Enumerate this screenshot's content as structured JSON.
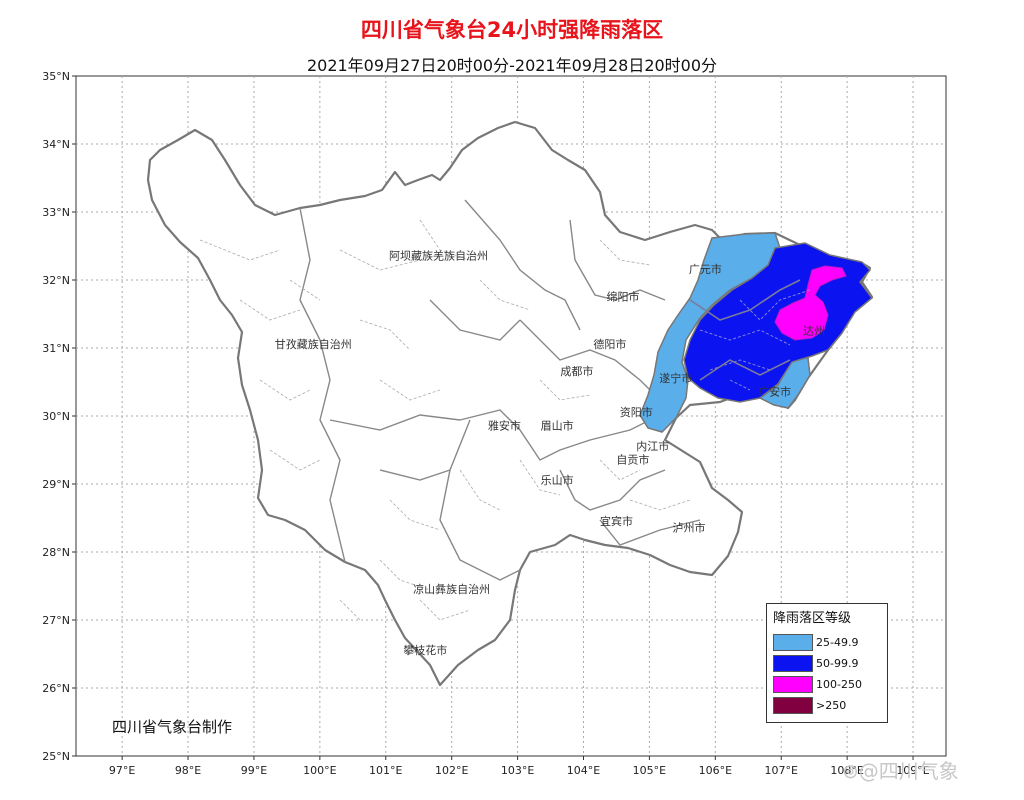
{
  "title": "四川省气象台24小时强降雨落区",
  "subtitle": "2021年09月27日20时00分-2021年09月28日20时00分",
  "axes": {
    "lat_ticks": [
      "35°N",
      "34°N",
      "33°N",
      "32°N",
      "31°N",
      "30°N",
      "29°N",
      "28°N",
      "27°N",
      "26°N",
      "25°N"
    ],
    "lon_ticks": [
      "97°E",
      "98°E",
      "99°E",
      "100°E",
      "101°E",
      "102°E",
      "103°E",
      "104°E",
      "105°E",
      "106°E",
      "107°E",
      "108°E",
      "109°E"
    ],
    "lat_range": [
      25,
      35
    ],
    "lon_range": [
      96.3,
      109.5
    ]
  },
  "cities": [
    {
      "name": "阿坝藏族羌族自治州",
      "lon": 101.8,
      "lat": 32.3
    },
    {
      "name": "甘孜藏族自治州",
      "lon": 99.9,
      "lat": 31.0
    },
    {
      "name": "凉山彝族自治州",
      "lon": 102.0,
      "lat": 27.4
    },
    {
      "name": "广元市",
      "lon": 105.85,
      "lat": 32.1
    },
    {
      "name": "绵阳市",
      "lon": 104.6,
      "lat": 31.7
    },
    {
      "name": "德阳市",
      "lon": 104.4,
      "lat": 31.0
    },
    {
      "name": "成都市",
      "lon": 103.9,
      "lat": 30.6
    },
    {
      "name": "遂宁市",
      "lon": 105.4,
      "lat": 30.5
    },
    {
      "name": "资阳市",
      "lon": 104.8,
      "lat": 30.0
    },
    {
      "name": "雅安市",
      "lon": 102.8,
      "lat": 29.8
    },
    {
      "name": "眉山市",
      "lon": 103.6,
      "lat": 29.8
    },
    {
      "name": "内江市",
      "lon": 105.05,
      "lat": 29.5
    },
    {
      "name": "自贡市",
      "lon": 104.75,
      "lat": 29.3
    },
    {
      "name": "乐山市",
      "lon": 103.6,
      "lat": 29.0
    },
    {
      "name": "宜宾市",
      "lon": 104.5,
      "lat": 28.4
    },
    {
      "name": "泸州市",
      "lon": 105.6,
      "lat": 28.3
    },
    {
      "name": "攀枝花市",
      "lon": 101.6,
      "lat": 26.5
    },
    {
      "name": "达州",
      "lon": 107.5,
      "lat": 31.2
    },
    {
      "name": "广安市",
      "lon": 106.9,
      "lat": 30.3
    }
  ],
  "legend": {
    "title": "降雨落区等级",
    "items": [
      {
        "label": "25-49.9",
        "color": "#5aaeea"
      },
      {
        "label": "50-99.9",
        "color": "#0b14f0"
      },
      {
        "label": "100-250",
        "color": "#ff00ff"
      },
      {
        "label": ">250",
        "color": "#800040"
      }
    ]
  },
  "credit": "四川省气象台制作",
  "watermark": "@四川气象",
  "colors": {
    "title": "#e8141b",
    "grid": "#999999",
    "boundary": "#777777",
    "light_blue": "#5aaeea",
    "dark_blue": "#0b14f0",
    "magenta": "#ff00ff"
  }
}
